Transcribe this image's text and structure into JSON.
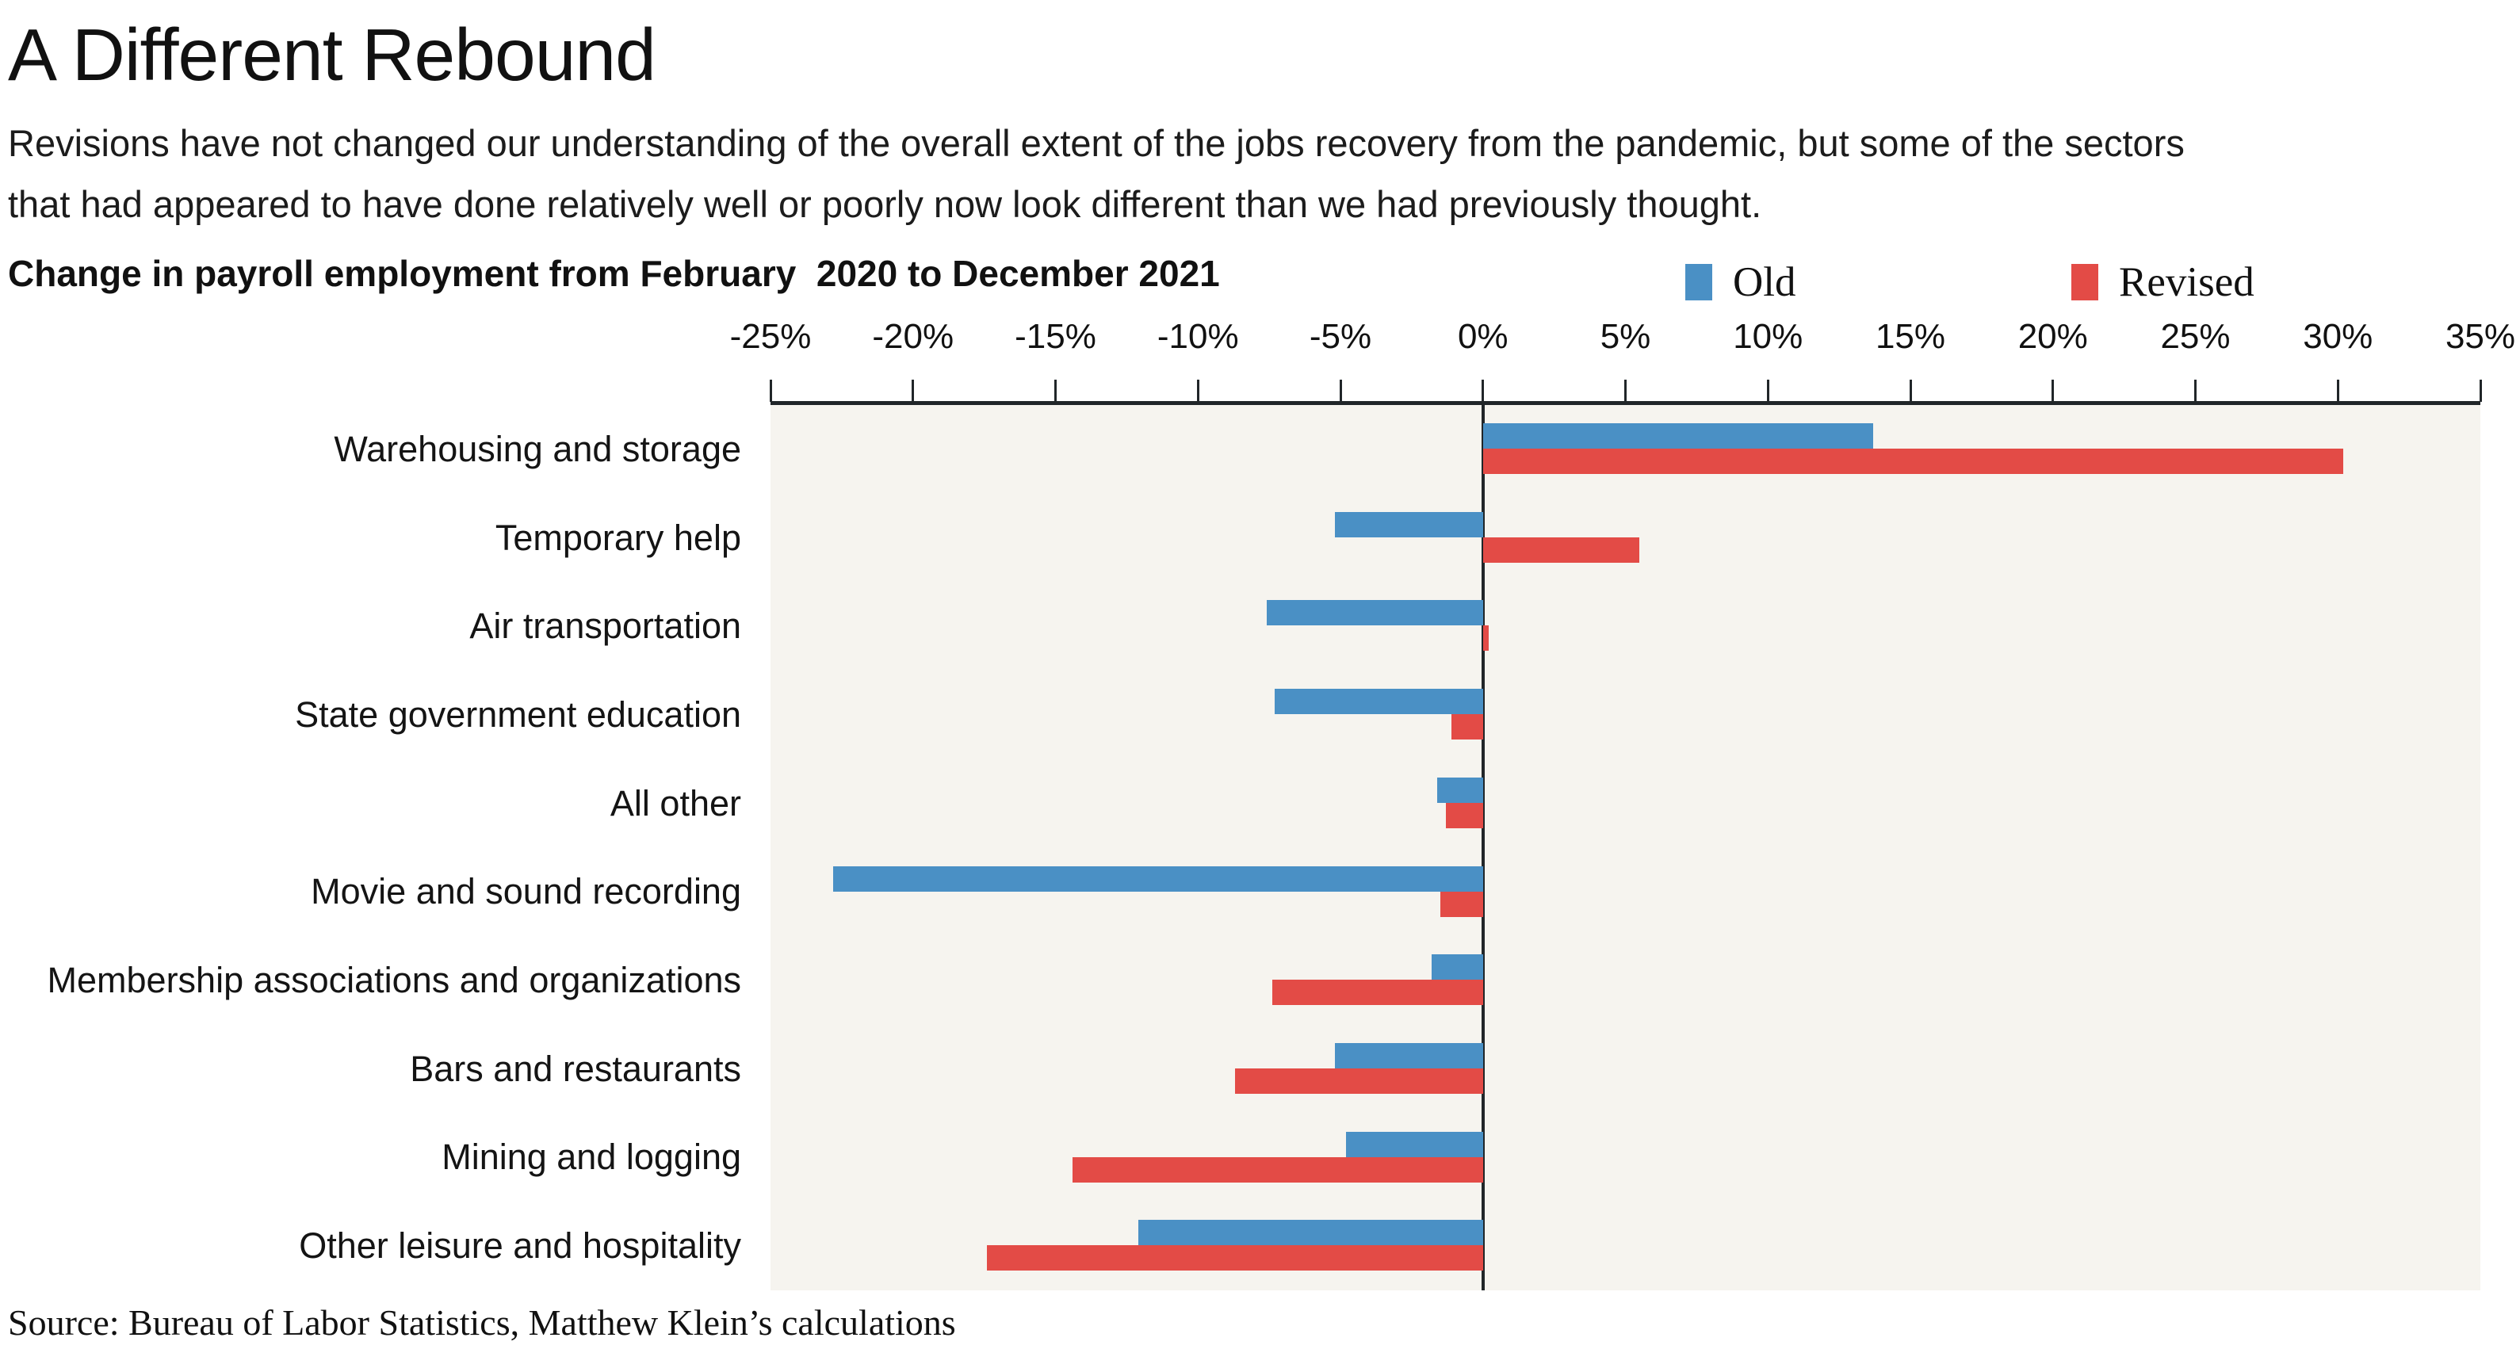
{
  "header": {
    "title": "A Different Rebound",
    "subtitle_line1": "Revisions have not changed our understanding of the overall extent of the jobs recovery from the pandemic, but some of the sectors",
    "subtitle_line2": "that had appeared to have done relatively well or poorly now look different than we had previously thought.",
    "chart_heading": "Change in payroll employment from February  2020 to December 2021"
  },
  "legend": [
    {
      "label": "Old",
      "color": "#4a90c5"
    },
    {
      "label": "Revised",
      "color": "#e34b46"
    }
  ],
  "source": "Source: Bureau of Labor Statistics, Matthew Klein’s calculations",
  "colors": {
    "old": "#4a90c5",
    "revised": "#e34b46",
    "plot_background": "#f6f4ef",
    "axis": "#212629",
    "text": "#111111"
  },
  "chart_data": {
    "type": "bar",
    "orientation": "horizontal",
    "title": "Change in payroll employment from February 2020 to December 2021",
    "xlabel": "",
    "ylabel": "",
    "xlim": [
      -25,
      35
    ],
    "x_ticks": [
      -25,
      -20,
      -15,
      -10,
      -5,
      0,
      5,
      10,
      15,
      20,
      25,
      30,
      35
    ],
    "x_tick_suffix": "%",
    "grid": "zero-line-only",
    "legend_position": "top-right",
    "categories": [
      "Warehousing and storage",
      "Temporary help",
      "Air transportation",
      "State government education",
      "All other",
      "Movie and sound recording",
      "Membership associations and organizations",
      "Bars and restaurants",
      "Mining and logging",
      "Other leisure and hospitality"
    ],
    "series": [
      {
        "name": "Old",
        "color": "#4a90c5",
        "values": [
          13.7,
          -5.2,
          -7.6,
          -7.3,
          -1.6,
          -22.8,
          -1.8,
          -5.2,
          -4.8,
          -12.1
        ]
      },
      {
        "name": "Revised",
        "color": "#e34b46",
        "values": [
          30.2,
          5.5,
          0.2,
          -1.1,
          -1.3,
          -1.5,
          -7.4,
          -8.7,
          -14.4,
          -17.4
        ]
      }
    ]
  }
}
